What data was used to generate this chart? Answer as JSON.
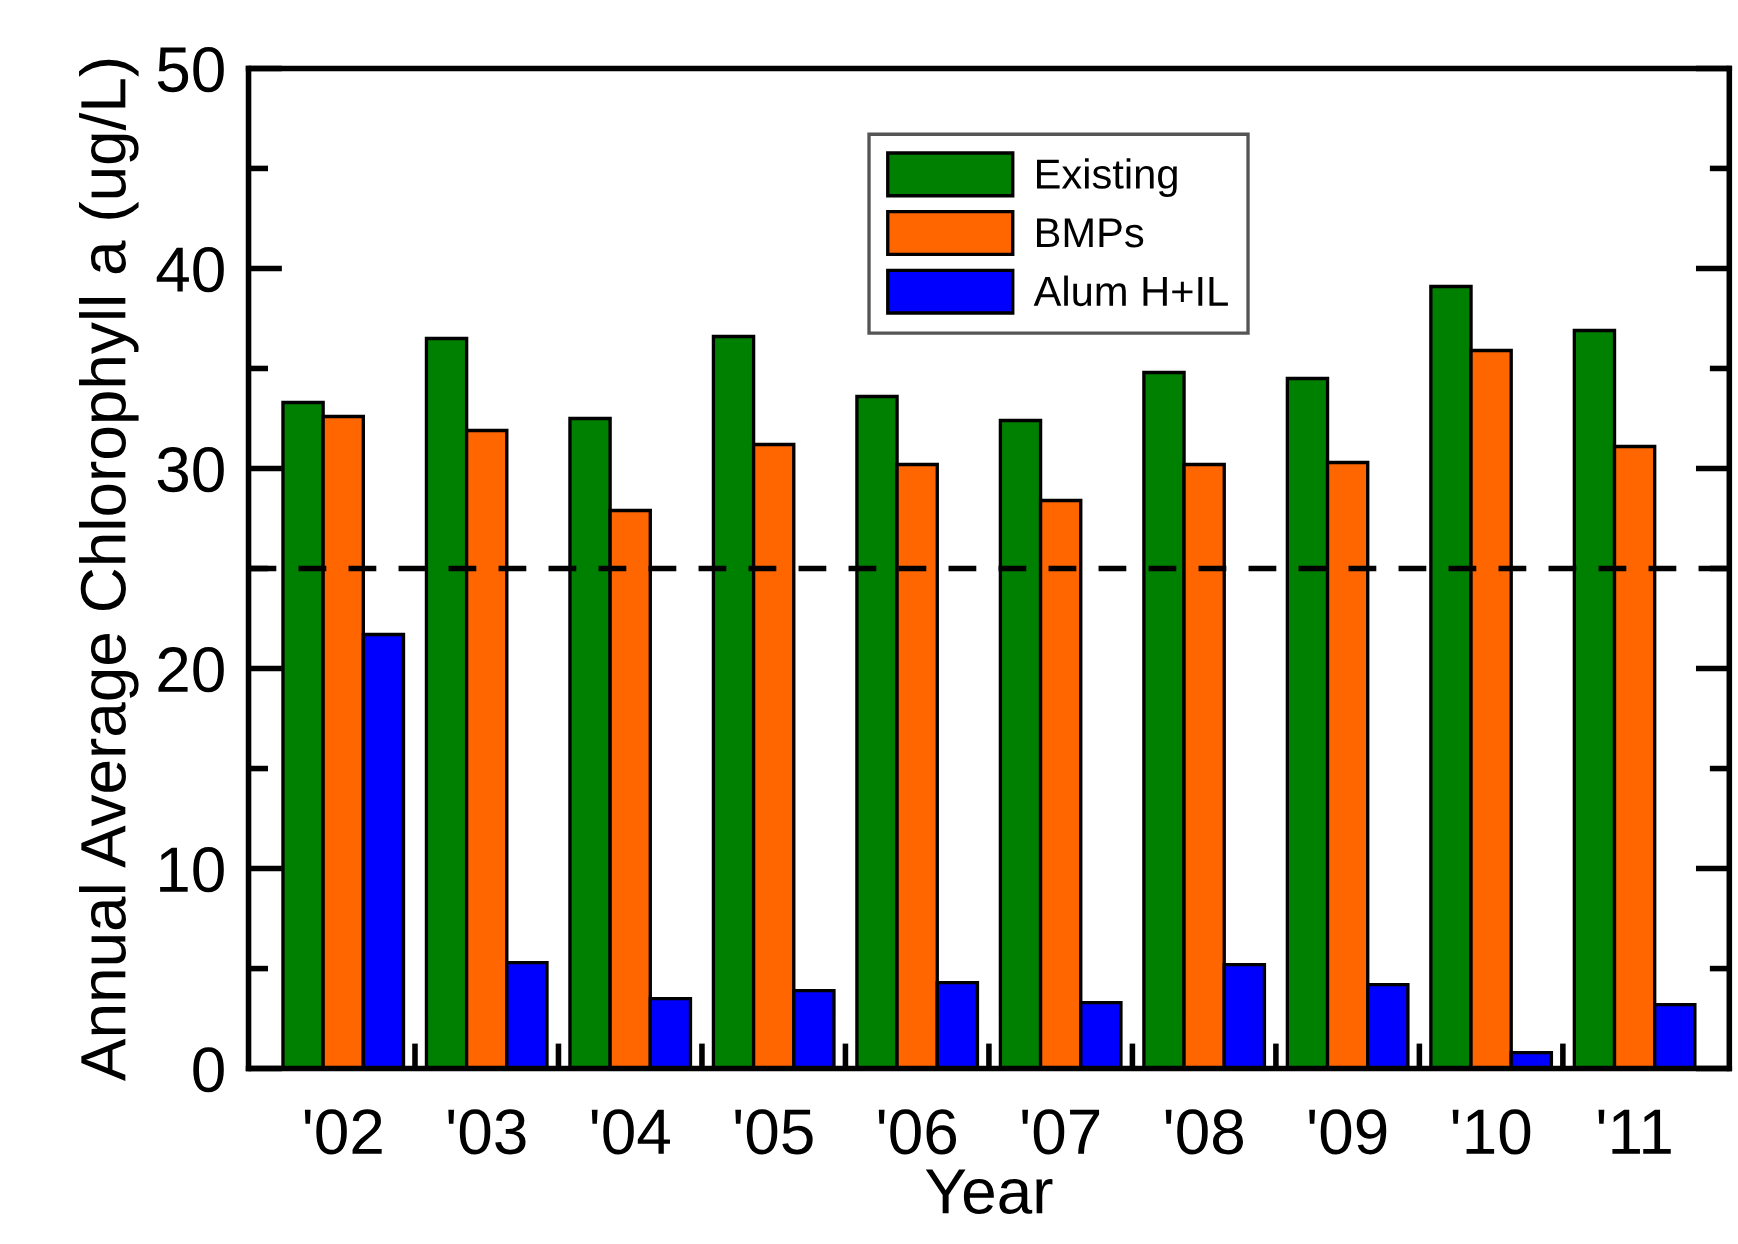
{
  "chart_data": {
    "type": "bar",
    "xlabel": "Year",
    "ylabel": "Annual Average Chlorophyll a (ug/L)",
    "categories": [
      "'02",
      "'03",
      "'04",
      "'05",
      "'06",
      "'07",
      "'08",
      "'09",
      "'10",
      "'11"
    ],
    "series": [
      {
        "name": "Existing",
        "color": "#008000",
        "values": [
          33.3,
          36.5,
          32.5,
          36.6,
          33.6,
          32.4,
          34.8,
          34.5,
          39.1,
          36.9
        ]
      },
      {
        "name": "BMPs",
        "color": "#ff6600",
        "values": [
          32.6,
          31.9,
          27.9,
          31.2,
          30.2,
          28.4,
          30.2,
          30.3,
          35.9,
          31.1
        ]
      },
      {
        "name": "Alum H+IL",
        "color": "#0000ff",
        "values": [
          21.7,
          5.3,
          3.5,
          3.9,
          4.3,
          3.3,
          5.2,
          4.2,
          0.8,
          3.2
        ]
      }
    ],
    "ylim": [
      0,
      50
    ],
    "yticks": [
      0,
      {
        "value": 5,
        "label": null
      },
      10,
      {
        "value": 15,
        "label": null
      },
      20,
      {
        "value": 25,
        "label": null
      },
      30,
      {
        "value": 35,
        "label": null
      },
      40,
      {
        "value": 45,
        "label": null
      },
      50
    ],
    "ref_lines": [
      {
        "axis": "y",
        "value": 25,
        "color": "#000000",
        "line_style": "dashed"
      }
    ],
    "legend": "top"
  }
}
